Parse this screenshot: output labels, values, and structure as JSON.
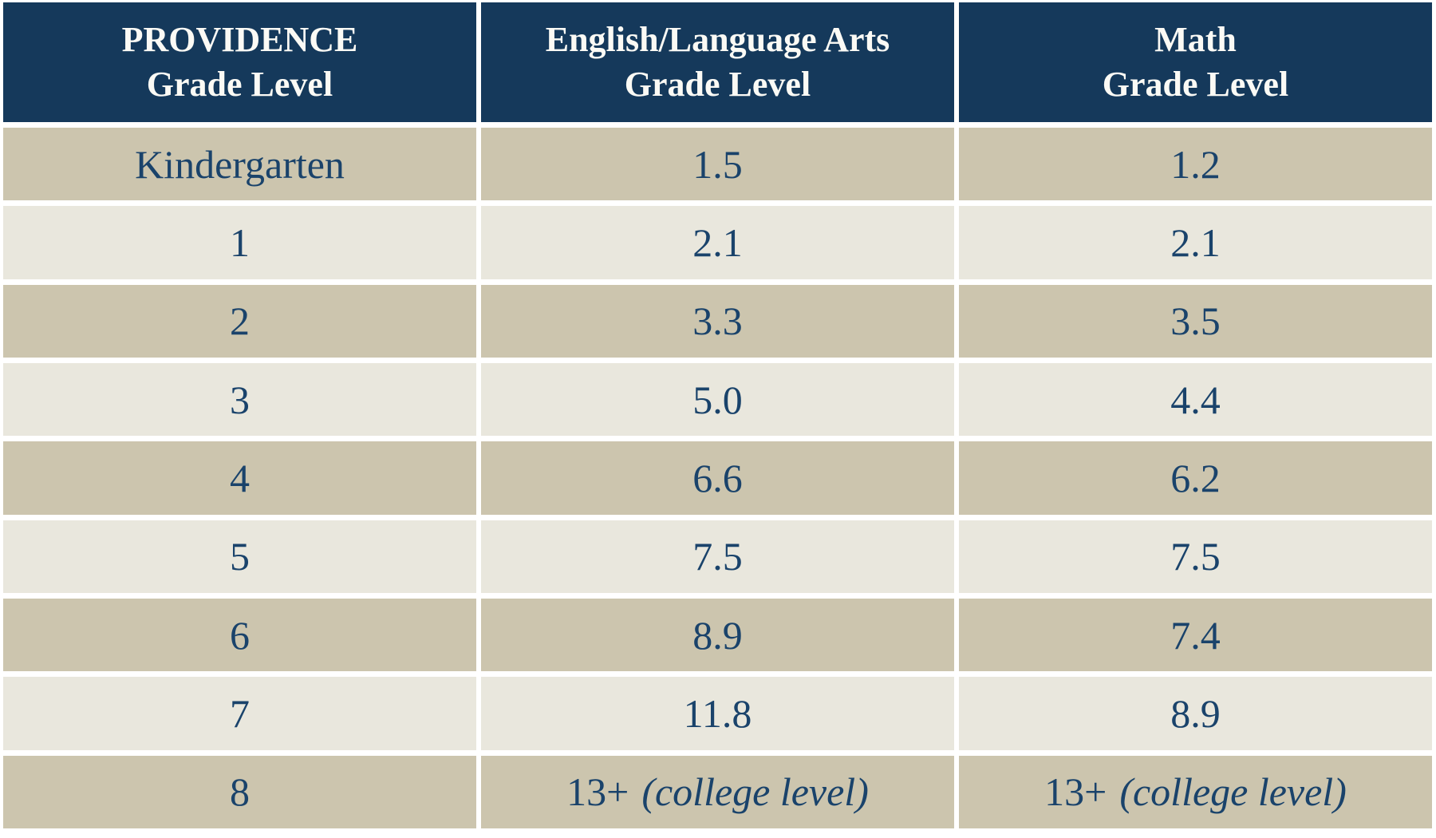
{
  "table": {
    "columns": [
      {
        "title_line1": "PROVIDENCE",
        "title_line2": "Grade Level"
      },
      {
        "title_line1": "English/Language Arts",
        "title_line2": "Grade Level"
      },
      {
        "title_line1": "Math",
        "title_line2": "Grade Level"
      }
    ],
    "rows": [
      {
        "grade": "Kindergarten",
        "ela": "1.5",
        "ela_note": "",
        "math": "1.2",
        "math_note": ""
      },
      {
        "grade": "1",
        "ela": "2.1",
        "ela_note": "",
        "math": "2.1",
        "math_note": ""
      },
      {
        "grade": "2",
        "ela": "3.3",
        "ela_note": "",
        "math": "3.5",
        "math_note": ""
      },
      {
        "grade": "3",
        "ela": "5.0",
        "ela_note": "",
        "math": "4.4",
        "math_note": ""
      },
      {
        "grade": "4",
        "ela": "6.6",
        "ela_note": "",
        "math": "6.2",
        "math_note": ""
      },
      {
        "grade": "5",
        "ela": "7.5",
        "ela_note": "",
        "math": "7.5",
        "math_note": ""
      },
      {
        "grade": "6",
        "ela": "8.9",
        "ela_note": "",
        "math": "7.4",
        "math_note": ""
      },
      {
        "grade": "7",
        "ela": "11.8",
        "ela_note": "",
        "math": "8.9",
        "math_note": ""
      },
      {
        "grade": "8",
        "ela": "13+",
        "ela_note": "(college level)",
        "math": "13+",
        "math_note": "(college level)"
      }
    ]
  },
  "chart_data": {
    "type": "table",
    "title": "",
    "columns": [
      "PROVIDENCE Grade Level",
      "English/Language Arts Grade Level",
      "Math Grade Level"
    ],
    "rows": [
      [
        "Kindergarten",
        "1.5",
        "1.2"
      ],
      [
        "1",
        "2.1",
        "2.1"
      ],
      [
        "2",
        "3.3",
        "3.5"
      ],
      [
        "3",
        "5.0",
        "4.4"
      ],
      [
        "4",
        "6.6",
        "6.2"
      ],
      [
        "5",
        "7.5",
        "7.5"
      ],
      [
        "6",
        "8.9",
        "7.4"
      ],
      [
        "7",
        "11.8",
        "8.9"
      ],
      [
        "8",
        "13+ (college level)",
        "13+ (college level)"
      ]
    ],
    "layout": {
      "zebra_striping": true,
      "header_position": "top",
      "cell_alignment": "center"
    }
  },
  "colors": {
    "navy": "#15395B",
    "tan": "#CCC5AE",
    "light": "#E9E7DD",
    "text-navy": "#1A436B",
    "gap": "#FFFFFF",
    "header-text": "#FBFAF5"
  }
}
